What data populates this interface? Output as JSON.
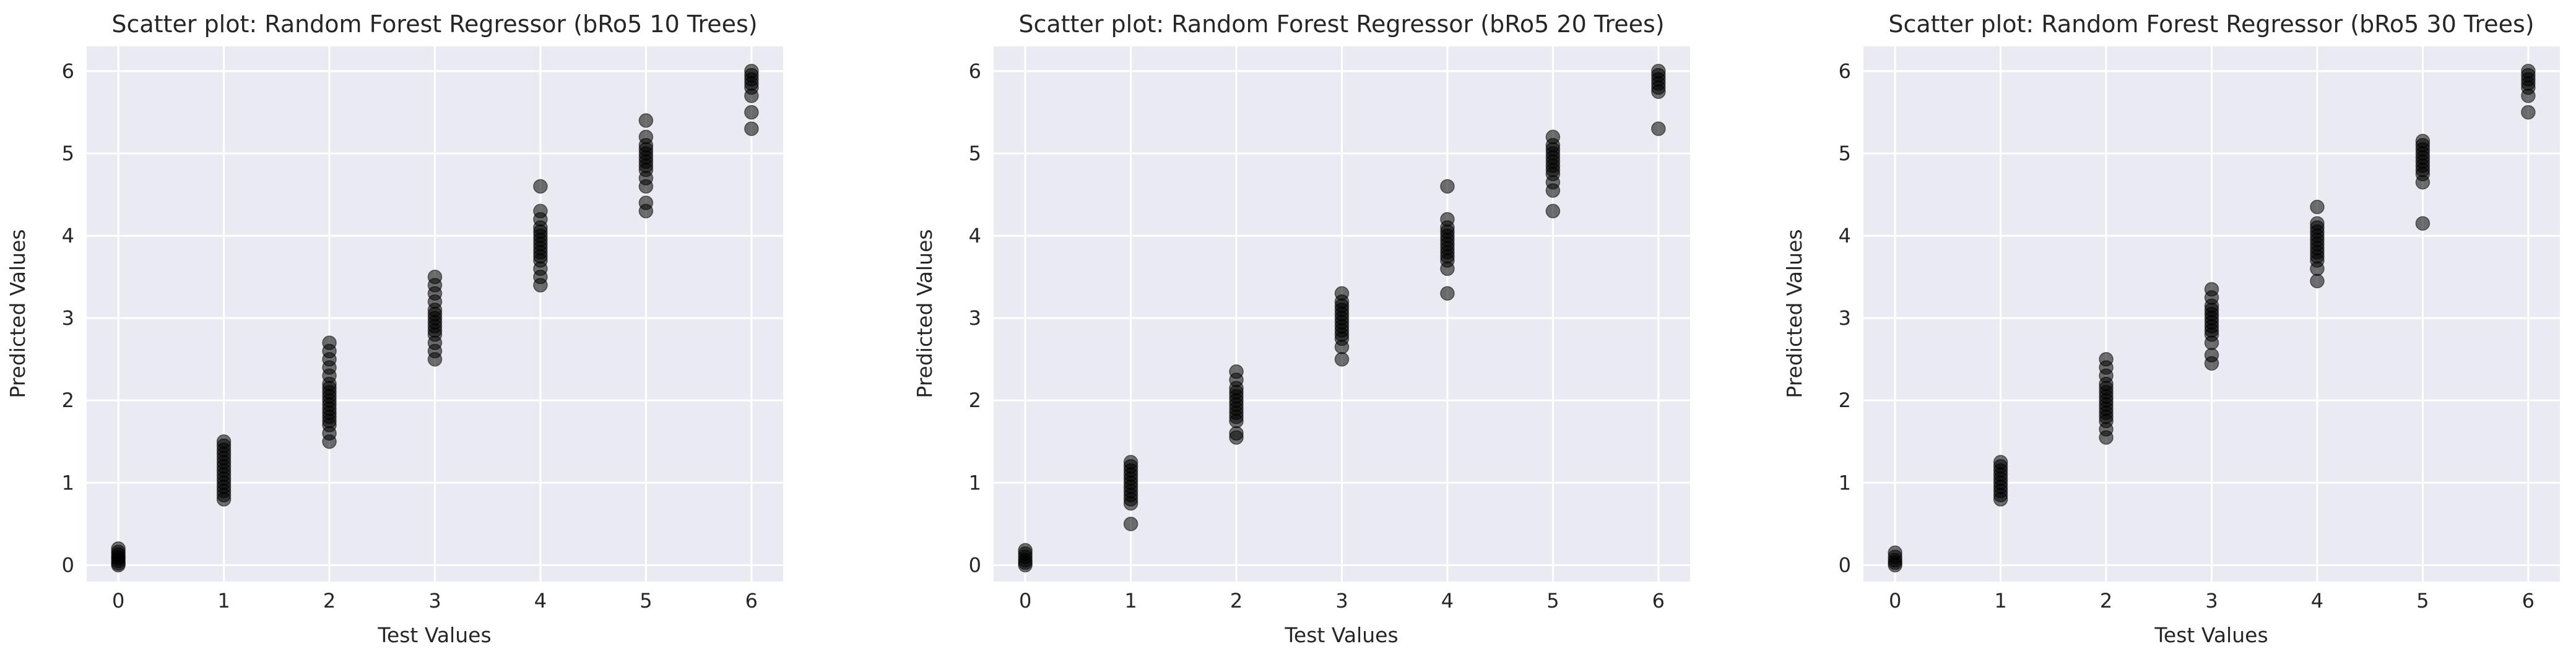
{
  "chart_data": [
    {
      "type": "scatter",
      "title": "Scatter plot: Random Forest Regressor (bRo5 10 Trees)",
      "xlabel": "Test Values",
      "ylabel": "Predicted Values",
      "xlim": [
        -0.3,
        6.3
      ],
      "ylim": [
        -0.2,
        6.3
      ],
      "xticks": [
        0,
        1,
        2,
        3,
        4,
        5,
        6
      ],
      "yticks": [
        0,
        1,
        2,
        3,
        4,
        5,
        6
      ],
      "grid": true,
      "point_color": "#000000",
      "series": [
        {
          "points": [
            [
              0,
              0.0
            ],
            [
              0,
              0.02
            ],
            [
              0,
              0.05
            ],
            [
              0,
              0.08
            ],
            [
              0,
              0.1
            ],
            [
              0,
              0.13
            ],
            [
              0,
              0.16
            ],
            [
              0,
              0.2
            ],
            [
              1,
              0.8
            ],
            [
              1,
              0.85
            ],
            [
              1,
              0.9
            ],
            [
              1,
              0.95
            ],
            [
              1,
              1.0
            ],
            [
              1,
              1.05
            ],
            [
              1,
              1.1
            ],
            [
              1,
              1.15
            ],
            [
              1,
              1.2
            ],
            [
              1,
              1.25
            ],
            [
              1,
              1.3
            ],
            [
              1,
              1.35
            ],
            [
              1,
              1.4
            ],
            [
              1,
              1.45
            ],
            [
              1,
              1.5
            ],
            [
              2,
              1.5
            ],
            [
              2,
              1.6
            ],
            [
              2,
              1.7
            ],
            [
              2,
              1.75
            ],
            [
              2,
              1.8
            ],
            [
              2,
              1.85
            ],
            [
              2,
              1.9
            ],
            [
              2,
              1.95
            ],
            [
              2,
              2.0
            ],
            [
              2,
              2.05
            ],
            [
              2,
              2.1
            ],
            [
              2,
              2.15
            ],
            [
              2,
              2.2
            ],
            [
              2,
              2.3
            ],
            [
              2,
              2.4
            ],
            [
              2,
              2.5
            ],
            [
              2,
              2.6
            ],
            [
              2,
              2.7
            ],
            [
              3,
              2.5
            ],
            [
              3,
              2.6
            ],
            [
              3,
              2.7
            ],
            [
              3,
              2.8
            ],
            [
              3,
              2.85
            ],
            [
              3,
              2.9
            ],
            [
              3,
              2.95
            ],
            [
              3,
              3.0
            ],
            [
              3,
              3.05
            ],
            [
              3,
              3.1
            ],
            [
              3,
              3.2
            ],
            [
              3,
              3.3
            ],
            [
              3,
              3.4
            ],
            [
              3,
              3.5
            ],
            [
              4,
              3.4
            ],
            [
              4,
              3.5
            ],
            [
              4,
              3.6
            ],
            [
              4,
              3.7
            ],
            [
              4,
              3.75
            ],
            [
              4,
              3.8
            ],
            [
              4,
              3.85
            ],
            [
              4,
              3.9
            ],
            [
              4,
              3.95
            ],
            [
              4,
              4.0
            ],
            [
              4,
              4.05
            ],
            [
              4,
              4.1
            ],
            [
              4,
              4.2
            ],
            [
              4,
              4.3
            ],
            [
              4,
              4.6
            ],
            [
              5,
              4.3
            ],
            [
              5,
              4.4
            ],
            [
              5,
              4.6
            ],
            [
              5,
              4.7
            ],
            [
              5,
              4.8
            ],
            [
              5,
              4.85
            ],
            [
              5,
              4.9
            ],
            [
              5,
              4.95
            ],
            [
              5,
              5.0
            ],
            [
              5,
              5.05
            ],
            [
              5,
              5.1
            ],
            [
              5,
              5.2
            ],
            [
              5,
              5.4
            ],
            [
              6,
              5.3
            ],
            [
              6,
              5.5
            ],
            [
              6,
              5.7
            ],
            [
              6,
              5.8
            ],
            [
              6,
              5.85
            ],
            [
              6,
              5.9
            ],
            [
              6,
              5.95
            ],
            [
              6,
              6.0
            ]
          ]
        }
      ]
    },
    {
      "type": "scatter",
      "title": "Scatter plot: Random Forest Regressor (bRo5 20 Trees)",
      "xlabel": "Test Values",
      "ylabel": "Predicted Values",
      "xlim": [
        -0.3,
        6.3
      ],
      "ylim": [
        -0.2,
        6.3
      ],
      "xticks": [
        0,
        1,
        2,
        3,
        4,
        5,
        6
      ],
      "yticks": [
        0,
        1,
        2,
        3,
        4,
        5,
        6
      ],
      "grid": true,
      "point_color": "#000000",
      "series": [
        {
          "points": [
            [
              0,
              0.0
            ],
            [
              0,
              0.03
            ],
            [
              0,
              0.06
            ],
            [
              0,
              0.1
            ],
            [
              0,
              0.14
            ],
            [
              0,
              0.18
            ],
            [
              1,
              0.5
            ],
            [
              1,
              0.75
            ],
            [
              1,
              0.8
            ],
            [
              1,
              0.85
            ],
            [
              1,
              0.9
            ],
            [
              1,
              0.95
            ],
            [
              1,
              1.0
            ],
            [
              1,
              1.05
            ],
            [
              1,
              1.1
            ],
            [
              1,
              1.15
            ],
            [
              1,
              1.2
            ],
            [
              1,
              1.25
            ],
            [
              2,
              1.55
            ],
            [
              2,
              1.6
            ],
            [
              2,
              1.75
            ],
            [
              2,
              1.8
            ],
            [
              2,
              1.85
            ],
            [
              2,
              1.9
            ],
            [
              2,
              1.95
            ],
            [
              2,
              2.0
            ],
            [
              2,
              2.05
            ],
            [
              2,
              2.1
            ],
            [
              2,
              2.15
            ],
            [
              2,
              2.25
            ],
            [
              2,
              2.35
            ],
            [
              3,
              2.5
            ],
            [
              3,
              2.65
            ],
            [
              3,
              2.75
            ],
            [
              3,
              2.8
            ],
            [
              3,
              2.85
            ],
            [
              3,
              2.9
            ],
            [
              3,
              2.95
            ],
            [
              3,
              3.0
            ],
            [
              3,
              3.05
            ],
            [
              3,
              3.1
            ],
            [
              3,
              3.15
            ],
            [
              3,
              3.2
            ],
            [
              3,
              3.3
            ],
            [
              4,
              3.3
            ],
            [
              4,
              3.6
            ],
            [
              4,
              3.7
            ],
            [
              4,
              3.75
            ],
            [
              4,
              3.8
            ],
            [
              4,
              3.85
            ],
            [
              4,
              3.9
            ],
            [
              4,
              3.95
            ],
            [
              4,
              4.0
            ],
            [
              4,
              4.05
            ],
            [
              4,
              4.1
            ],
            [
              4,
              4.2
            ],
            [
              4,
              4.6
            ],
            [
              5,
              4.3
            ],
            [
              5,
              4.55
            ],
            [
              5,
              4.65
            ],
            [
              5,
              4.75
            ],
            [
              5,
              4.8
            ],
            [
              5,
              4.85
            ],
            [
              5,
              4.9
            ],
            [
              5,
              4.95
            ],
            [
              5,
              5.0
            ],
            [
              5,
              5.05
            ],
            [
              5,
              5.1
            ],
            [
              5,
              5.2
            ],
            [
              6,
              5.3
            ],
            [
              6,
              5.75
            ],
            [
              6,
              5.8
            ],
            [
              6,
              5.85
            ],
            [
              6,
              5.9
            ],
            [
              6,
              5.95
            ],
            [
              6,
              6.0
            ]
          ]
        }
      ]
    },
    {
      "type": "scatter",
      "title": "Scatter plot: Random Forest Regressor (bRo5 30 Trees)",
      "xlabel": "Test Values",
      "ylabel": "Predicted Values",
      "xlim": [
        -0.3,
        6.3
      ],
      "ylim": [
        -0.2,
        6.3
      ],
      "xticks": [
        0,
        1,
        2,
        3,
        4,
        5,
        6
      ],
      "yticks": [
        0,
        1,
        2,
        3,
        4,
        5,
        6
      ],
      "grid": true,
      "point_color": "#000000",
      "series": [
        {
          "points": [
            [
              0,
              0.0
            ],
            [
              0,
              0.03
            ],
            [
              0,
              0.06
            ],
            [
              0,
              0.1
            ],
            [
              0,
              0.15
            ],
            [
              1,
              0.8
            ],
            [
              1,
              0.85
            ],
            [
              1,
              0.9
            ],
            [
              1,
              0.95
            ],
            [
              1,
              1.0
            ],
            [
              1,
              1.05
            ],
            [
              1,
              1.1
            ],
            [
              1,
              1.15
            ],
            [
              1,
              1.2
            ],
            [
              1,
              1.25
            ],
            [
              2,
              1.55
            ],
            [
              2,
              1.65
            ],
            [
              2,
              1.75
            ],
            [
              2,
              1.8
            ],
            [
              2,
              1.85
            ],
            [
              2,
              1.9
            ],
            [
              2,
              1.95
            ],
            [
              2,
              2.0
            ],
            [
              2,
              2.05
            ],
            [
              2,
              2.1
            ],
            [
              2,
              2.15
            ],
            [
              2,
              2.2
            ],
            [
              2,
              2.3
            ],
            [
              2,
              2.4
            ],
            [
              2,
              2.5
            ],
            [
              3,
              2.45
            ],
            [
              3,
              2.55
            ],
            [
              3,
              2.7
            ],
            [
              3,
              2.8
            ],
            [
              3,
              2.85
            ],
            [
              3,
              2.9
            ],
            [
              3,
              2.95
            ],
            [
              3,
              3.0
            ],
            [
              3,
              3.05
            ],
            [
              3,
              3.1
            ],
            [
              3,
              3.15
            ],
            [
              3,
              3.25
            ],
            [
              3,
              3.35
            ],
            [
              4,
              3.45
            ],
            [
              4,
              3.6
            ],
            [
              4,
              3.7
            ],
            [
              4,
              3.75
            ],
            [
              4,
              3.8
            ],
            [
              4,
              3.85
            ],
            [
              4,
              3.9
            ],
            [
              4,
              3.95
            ],
            [
              4,
              4.0
            ],
            [
              4,
              4.05
            ],
            [
              4,
              4.1
            ],
            [
              4,
              4.15
            ],
            [
              4,
              4.35
            ],
            [
              5,
              4.15
            ],
            [
              5,
              4.65
            ],
            [
              5,
              4.75
            ],
            [
              5,
              4.8
            ],
            [
              5,
              4.85
            ],
            [
              5,
              4.9
            ],
            [
              5,
              4.95
            ],
            [
              5,
              5.0
            ],
            [
              5,
              5.05
            ],
            [
              5,
              5.1
            ],
            [
              5,
              5.15
            ],
            [
              6,
              5.5
            ],
            [
              6,
              5.7
            ],
            [
              6,
              5.8
            ],
            [
              6,
              5.85
            ],
            [
              6,
              5.9
            ],
            [
              6,
              5.95
            ],
            [
              6,
              6.0
            ]
          ]
        }
      ]
    }
  ]
}
